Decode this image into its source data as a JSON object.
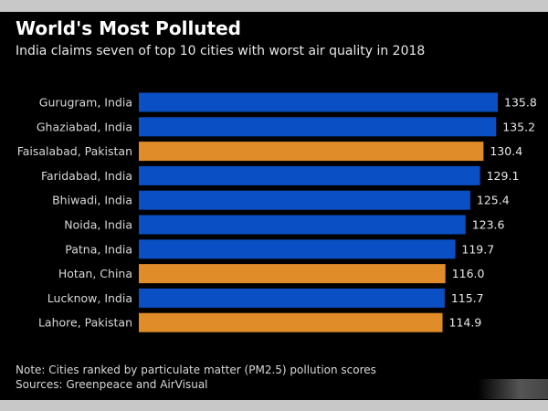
{
  "chart_data": {
    "type": "bar",
    "orientation": "horizontal",
    "title": "World's Most Polluted",
    "subtitle": "India claims seven of top 10 cities with worst air quality in 2018",
    "categories": [
      "Gurugram, India",
      "Ghaziabad, India",
      "Faisalabad, Pakistan",
      "Faridabad, India",
      "Bhiwadi, India",
      "Noida, India",
      "Patna, India",
      "Hotan, China",
      "Lucknow, India",
      "Lahore, Pakistan"
    ],
    "values": [
      135.8,
      135.2,
      130.4,
      129.1,
      125.4,
      123.6,
      119.7,
      116.0,
      115.7,
      114.9
    ],
    "value_labels": [
      "135.8",
      "135.2",
      "130.4",
      "129.1",
      "125.4",
      "123.6",
      "119.7",
      "116.0",
      "115.7",
      "114.9"
    ],
    "country_groups": [
      "india",
      "india",
      "other",
      "india",
      "india",
      "india",
      "india",
      "other",
      "india",
      "other"
    ],
    "colors": {
      "india": "#0a4fc4",
      "other": "#e08c28",
      "background": "#000000"
    },
    "xlim": [
      0,
      135.8
    ],
    "grid": false,
    "notes": [
      "Note: Cities ranked by particulate matter (PM2.5) pollution scores",
      "Sources: Greenpeace and AirVisual"
    ]
  }
}
